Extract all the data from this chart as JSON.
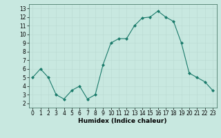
{
  "x": [
    0,
    1,
    2,
    3,
    4,
    5,
    6,
    7,
    8,
    9,
    10,
    11,
    12,
    13,
    14,
    15,
    16,
    17,
    18,
    19,
    20,
    21,
    22,
    23
  ],
  "y": [
    5,
    6,
    5,
    3,
    2.5,
    3.5,
    4,
    2.5,
    3,
    6.5,
    9,
    9.5,
    9.5,
    11,
    11.9,
    12,
    12.7,
    12,
    11.5,
    9,
    5.5,
    5,
    4.5,
    3.5
  ],
  "line_color": "#1a7a6a",
  "marker_color": "#1a7a6a",
  "bg_color": "#c8e8e0",
  "grid_color": "#b8d8d0",
  "xlabel": "Humidex (Indice chaleur)",
  "xlim": [
    -0.5,
    23.5
  ],
  "ylim": [
    1.5,
    13.5
  ],
  "yticks": [
    2,
    3,
    4,
    5,
    6,
    7,
    8,
    9,
    10,
    11,
    12,
    13
  ],
  "xticks": [
    0,
    1,
    2,
    3,
    4,
    5,
    6,
    7,
    8,
    9,
    10,
    11,
    12,
    13,
    14,
    15,
    16,
    17,
    18,
    19,
    20,
    21,
    22,
    23
  ],
  "label_fontsize": 6.5,
  "tick_fontsize": 5.5
}
